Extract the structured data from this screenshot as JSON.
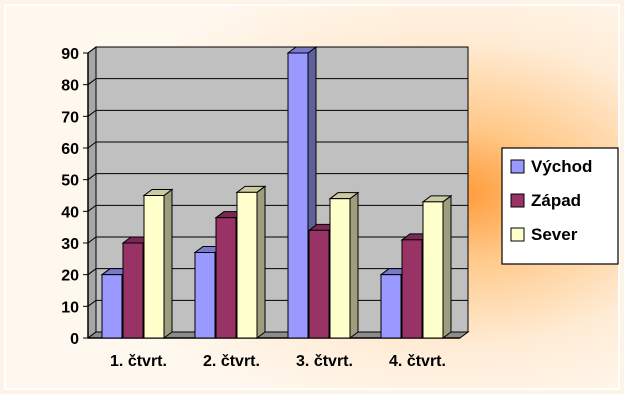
{
  "chart_data": {
    "type": "bar",
    "title": "",
    "xlabel": "",
    "ylabel": "",
    "ylim": [
      0,
      90
    ],
    "yticks": [
      "0",
      "10",
      "20",
      "30",
      "40",
      "50",
      "60",
      "70",
      "80",
      "90"
    ],
    "categories": [
      "1. čtvrt.",
      "2. čtvrt.",
      "3. čtvrt.",
      "4. čtvrt."
    ],
    "series": [
      {
        "name": "Východ",
        "values": [
          20,
          27,
          90,
          20
        ],
        "color": "#9999ff"
      },
      {
        "name": "Západ",
        "values": [
          30,
          38,
          34,
          31
        ],
        "color": "#993366"
      },
      {
        "name": "Sever",
        "values": [
          45,
          46,
          44,
          43
        ],
        "color": "#ffffcc"
      }
    ],
    "grid": true,
    "legend": "right",
    "colors": {
      "plot_area": "#c0c0c0",
      "background_glow": "#ffb060",
      "background_edge": "#fffaf3"
    }
  }
}
